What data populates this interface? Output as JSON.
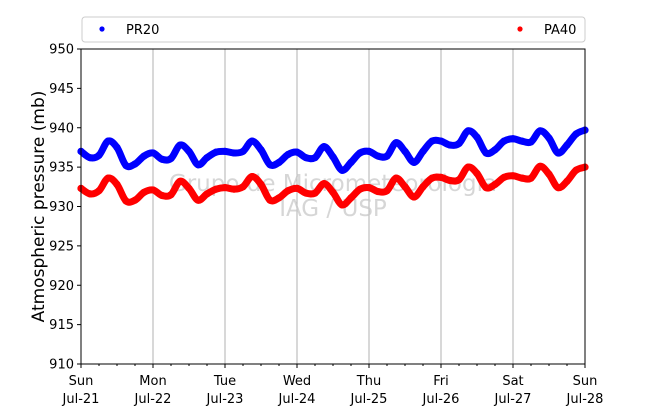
{
  "chart_data": {
    "type": "scatter",
    "ylabel": "Atmospheric pressure (mb)",
    "xlabel": "",
    "ylim": [
      910,
      950
    ],
    "yticks": [
      910,
      915,
      920,
      925,
      930,
      935,
      940,
      945,
      950
    ],
    "xlim": [
      "2019-07-21T00:00",
      "2019-07-28T00:00"
    ],
    "xticks": [
      {
        "date": "2019-07-21",
        "day": "Sun",
        "date_label": "Jul-21"
      },
      {
        "date": "2019-07-22",
        "day": "Mon",
        "date_label": "Jul-22"
      },
      {
        "date": "2019-07-23",
        "day": "Tue",
        "date_label": "Jul-23"
      },
      {
        "date": "2019-07-24",
        "day": "Wed",
        "date_label": "Jul-24"
      },
      {
        "date": "2019-07-25",
        "day": "Thu",
        "date_label": "Jul-25"
      },
      {
        "date": "2019-07-26",
        "day": "Fri",
        "date_label": "Jul-26"
      },
      {
        "date": "2019-07-27",
        "day": "Sat",
        "date_label": "Jul-27"
      },
      {
        "date": "2019-07-28",
        "day": "Sun",
        "date_label": "Jul-28"
      }
    ],
    "grid": "vertical",
    "legend_position": "top",
    "watermark": [
      "Grupo de Micrometeorologia",
      "IAG / USP"
    ],
    "series": [
      {
        "name": "PR20",
        "color": "#0000ff",
        "points": [
          [
            "2019-07-21T00:00",
            937.0
          ],
          [
            "2019-07-21T03:00",
            936.2
          ],
          [
            "2019-07-21T06:00",
            936.5
          ],
          [
            "2019-07-21T09:00",
            938.3
          ],
          [
            "2019-07-21T12:00",
            937.5
          ],
          [
            "2019-07-21T15:00",
            935.2
          ],
          [
            "2019-07-21T18:00",
            935.4
          ],
          [
            "2019-07-21T21:00",
            936.4
          ],
          [
            "2019-07-22T00:00",
            936.8
          ],
          [
            "2019-07-22T03:00",
            936.0
          ],
          [
            "2019-07-22T06:00",
            936.1
          ],
          [
            "2019-07-22T09:00",
            937.8
          ],
          [
            "2019-07-22T12:00",
            937.0
          ],
          [
            "2019-07-22T15:00",
            935.3
          ],
          [
            "2019-07-22T18:00",
            936.2
          ],
          [
            "2019-07-22T21:00",
            936.9
          ],
          [
            "2019-07-23T00:00",
            937.0
          ],
          [
            "2019-07-23T03:00",
            936.8
          ],
          [
            "2019-07-23T06:00",
            937.0
          ],
          [
            "2019-07-23T09:00",
            938.3
          ],
          [
            "2019-07-23T12:00",
            937.2
          ],
          [
            "2019-07-23T15:00",
            935.3
          ],
          [
            "2019-07-23T18:00",
            935.6
          ],
          [
            "2019-07-23T21:00",
            936.6
          ],
          [
            "2019-07-24T00:00",
            936.9
          ],
          [
            "2019-07-24T03:00",
            936.2
          ],
          [
            "2019-07-24T06:00",
            936.2
          ],
          [
            "2019-07-24T09:00",
            937.6
          ],
          [
            "2019-07-24T12:00",
            936.3
          ],
          [
            "2019-07-24T15:00",
            934.6
          ],
          [
            "2019-07-24T18:00",
            935.6
          ],
          [
            "2019-07-24T21:00",
            936.8
          ],
          [
            "2019-07-25T00:00",
            937.0
          ],
          [
            "2019-07-25T03:00",
            936.4
          ],
          [
            "2019-07-25T06:00",
            936.4
          ],
          [
            "2019-07-25T09:00",
            938.1
          ],
          [
            "2019-07-25T12:00",
            937.0
          ],
          [
            "2019-07-25T15:00",
            935.6
          ],
          [
            "2019-07-25T18:00",
            937.0
          ],
          [
            "2019-07-25T21:00",
            938.3
          ],
          [
            "2019-07-26T00:00",
            938.3
          ],
          [
            "2019-07-26T03:00",
            937.8
          ],
          [
            "2019-07-26T06:00",
            938.0
          ],
          [
            "2019-07-26T09:00",
            939.6
          ],
          [
            "2019-07-26T12:00",
            938.8
          ],
          [
            "2019-07-26T15:00",
            936.8
          ],
          [
            "2019-07-26T18:00",
            937.2
          ],
          [
            "2019-07-26T21:00",
            938.3
          ],
          [
            "2019-07-27T00:00",
            938.6
          ],
          [
            "2019-07-27T03:00",
            938.3
          ],
          [
            "2019-07-27T06:00",
            938.2
          ],
          [
            "2019-07-27T09:00",
            939.6
          ],
          [
            "2019-07-27T12:00",
            938.7
          ],
          [
            "2019-07-27T15:00",
            936.8
          ],
          [
            "2019-07-27T18:00",
            937.8
          ],
          [
            "2019-07-27T21:00",
            939.2
          ],
          [
            "2019-07-28T00:00",
            939.7
          ]
        ]
      },
      {
        "name": "PA40",
        "color": "#ff0000",
        "points": [
          [
            "2019-07-21T00:00",
            932.3
          ],
          [
            "2019-07-21T03:00",
            931.6
          ],
          [
            "2019-07-21T06:00",
            932.0
          ],
          [
            "2019-07-21T09:00",
            933.6
          ],
          [
            "2019-07-21T12:00",
            932.8
          ],
          [
            "2019-07-21T15:00",
            930.7
          ],
          [
            "2019-07-21T18:00",
            930.8
          ],
          [
            "2019-07-21T21:00",
            931.8
          ],
          [
            "2019-07-22T00:00",
            932.1
          ],
          [
            "2019-07-22T03:00",
            931.4
          ],
          [
            "2019-07-22T06:00",
            931.5
          ],
          [
            "2019-07-22T09:00",
            933.2
          ],
          [
            "2019-07-22T12:00",
            932.3
          ],
          [
            "2019-07-22T15:00",
            930.8
          ],
          [
            "2019-07-22T18:00",
            931.6
          ],
          [
            "2019-07-22T21:00",
            932.2
          ],
          [
            "2019-07-23T00:00",
            932.4
          ],
          [
            "2019-07-23T03:00",
            932.2
          ],
          [
            "2019-07-23T06:00",
            932.5
          ],
          [
            "2019-07-23T09:00",
            933.8
          ],
          [
            "2019-07-23T12:00",
            932.8
          ],
          [
            "2019-07-23T15:00",
            930.8
          ],
          [
            "2019-07-23T18:00",
            931.1
          ],
          [
            "2019-07-23T21:00",
            932.0
          ],
          [
            "2019-07-24T00:00",
            932.3
          ],
          [
            "2019-07-24T03:00",
            931.7
          ],
          [
            "2019-07-24T06:00",
            931.7
          ],
          [
            "2019-07-24T09:00",
            932.9
          ],
          [
            "2019-07-24T12:00",
            931.8
          ],
          [
            "2019-07-24T15:00",
            930.2
          ],
          [
            "2019-07-24T18:00",
            931.1
          ],
          [
            "2019-07-24T21:00",
            932.2
          ],
          [
            "2019-07-25T00:00",
            932.4
          ],
          [
            "2019-07-25T03:00",
            931.9
          ],
          [
            "2019-07-25T06:00",
            932.0
          ],
          [
            "2019-07-25T09:00",
            933.6
          ],
          [
            "2019-07-25T12:00",
            932.5
          ],
          [
            "2019-07-25T15:00",
            931.2
          ],
          [
            "2019-07-25T18:00",
            932.5
          ],
          [
            "2019-07-25T21:00",
            933.6
          ],
          [
            "2019-07-26T00:00",
            933.7
          ],
          [
            "2019-07-26T03:00",
            933.3
          ],
          [
            "2019-07-26T06:00",
            933.4
          ],
          [
            "2019-07-26T09:00",
            935.0
          ],
          [
            "2019-07-26T12:00",
            934.2
          ],
          [
            "2019-07-26T15:00",
            932.4
          ],
          [
            "2019-07-26T18:00",
            932.8
          ],
          [
            "2019-07-26T21:00",
            933.7
          ],
          [
            "2019-07-27T00:00",
            933.9
          ],
          [
            "2019-07-27T03:00",
            933.6
          ],
          [
            "2019-07-27T06:00",
            933.6
          ],
          [
            "2019-07-27T09:00",
            935.1
          ],
          [
            "2019-07-27T12:00",
            934.1
          ],
          [
            "2019-07-27T15:00",
            932.4
          ],
          [
            "2019-07-27T18:00",
            933.2
          ],
          [
            "2019-07-27T21:00",
            934.6
          ],
          [
            "2019-07-28T00:00",
            935.0
          ]
        ]
      }
    ]
  }
}
